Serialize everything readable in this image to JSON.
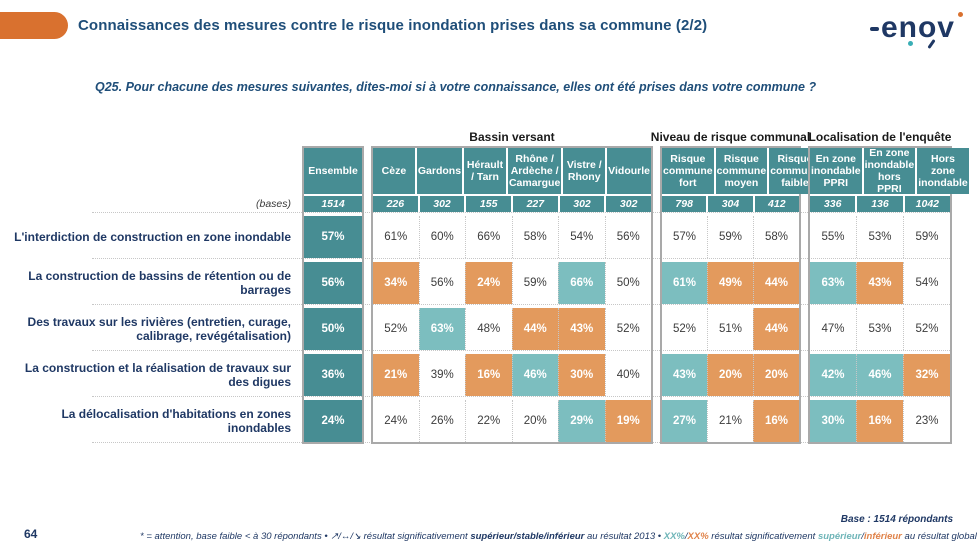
{
  "header": {
    "title": "Connaissances des mesures contre le risque inondation prises dans sa commune (2/2)",
    "logo_text": "enov"
  },
  "question": "Q25. Pour chacune des mesures suivantes, dites-moi si à votre connaissance, elles ont été prises dans votre commune ?",
  "colors": {
    "accent_pill": "#D9712F",
    "title_blue": "#1F4E79",
    "navy": "#1F3864",
    "teal_dark": "#478D93",
    "teal_light": "#7CBEBF",
    "orange": "#E39A5D"
  },
  "table": {
    "groups": [
      {
        "label": "",
        "columns": [
          "Ensemble"
        ]
      },
      {
        "label": "Bassin versant",
        "columns": [
          "Cèze",
          "Gardons",
          "Hérault / Tarn",
          "Rhône / Ardèche / Camargue",
          "Vistre / Rhony",
          "Vidourle"
        ]
      },
      {
        "label": "Niveau de risque communal",
        "columns": [
          "Risque commune fort",
          "Risque commune moyen",
          "Risque commune faible"
        ]
      },
      {
        "label": "Localisation de l'enquête",
        "columns": [
          "En zone inondable PPRI",
          "En zone inondable hors PPRI",
          "Hors zone inondable"
        ]
      }
    ],
    "bases_label": "(bases)",
    "bases": [
      "1514",
      "226",
      "302",
      "155",
      "227",
      "302",
      "302",
      "798",
      "304",
      "412",
      "336",
      "136",
      "1042"
    ],
    "tone_legend": {
      "ens": "ensemble dark teal",
      "plain": "white / not significant",
      "high": "light teal / significantly superior",
      "low": "orange / significantly inferior"
    },
    "rows": [
      {
        "label": "L'interdiction de construction en zone inondable",
        "values": [
          "57%",
          "61%",
          "60%",
          "66%",
          "58%",
          "54%",
          "56%",
          "57%",
          "59%",
          "58%",
          "55%",
          "53%",
          "59%"
        ],
        "tones": [
          "ens",
          "plain",
          "plain",
          "plain",
          "plain",
          "plain",
          "plain",
          "plain",
          "plain",
          "plain",
          "plain",
          "plain",
          "plain"
        ]
      },
      {
        "label": "La construction de bassins de rétention ou de barrages",
        "values": [
          "56%",
          "34%",
          "56%",
          "24%",
          "59%",
          "66%",
          "50%",
          "61%",
          "49%",
          "44%",
          "63%",
          "43%",
          "54%"
        ],
        "tones": [
          "ens",
          "low",
          "plain",
          "low",
          "plain",
          "high",
          "plain",
          "high",
          "low",
          "low",
          "high",
          "low",
          "plain"
        ]
      },
      {
        "label": "Des travaux sur les rivières (entretien, curage, calibrage, revégétalisation)",
        "values": [
          "50%",
          "52%",
          "63%",
          "48%",
          "44%",
          "43%",
          "52%",
          "52%",
          "51%",
          "44%",
          "47%",
          "53%",
          "52%"
        ],
        "tones": [
          "ens",
          "plain",
          "high",
          "plain",
          "low",
          "low",
          "plain",
          "plain",
          "plain",
          "low",
          "plain",
          "plain",
          "plain"
        ]
      },
      {
        "label": "La construction et la réalisation de travaux sur des digues",
        "values": [
          "36%",
          "21%",
          "39%",
          "16%",
          "46%",
          "30%",
          "40%",
          "43%",
          "20%",
          "20%",
          "42%",
          "46%",
          "32%"
        ],
        "tones": [
          "ens",
          "low",
          "plain",
          "low",
          "high",
          "low",
          "plain",
          "high",
          "low",
          "low",
          "high",
          "high",
          "low"
        ]
      },
      {
        "label": "La délocalisation d'habitations en zones inondables",
        "values": [
          "24%",
          "24%",
          "26%",
          "22%",
          "20%",
          "29%",
          "19%",
          "27%",
          "21%",
          "16%",
          "30%",
          "16%",
          "23%"
        ],
        "tones": [
          "ens",
          "plain",
          "plain",
          "plain",
          "plain",
          "high",
          "low",
          "high",
          "plain",
          "low",
          "high",
          "low",
          "plain"
        ]
      }
    ]
  },
  "footer": {
    "page_number": "64",
    "base_note": "Base : 1514 répondants",
    "footnote_segments": [
      {
        "t": "* = attention, base faible < à 30 répondants • ",
        "c": ""
      },
      {
        "t": "↗/↔/↘  ",
        "c": ""
      },
      {
        "t": "résultat significativement ",
        "c": ""
      },
      {
        "t": "supérieur/stable/inférieur",
        "c": "b"
      },
      {
        "t": " au résultat 2013 • ",
        "c": ""
      },
      {
        "t": "XX%",
        "c": "teal b"
      },
      {
        "t": "/",
        "c": ""
      },
      {
        "t": "XX%",
        "c": "orange b"
      },
      {
        "t": " résultat significativement ",
        "c": ""
      },
      {
        "t": "supérieur",
        "c": "teal b"
      },
      {
        "t": "/",
        "c": ""
      },
      {
        "t": "inférieur",
        "c": "orange b"
      },
      {
        "t": " au résultat global",
        "c": ""
      }
    ]
  }
}
